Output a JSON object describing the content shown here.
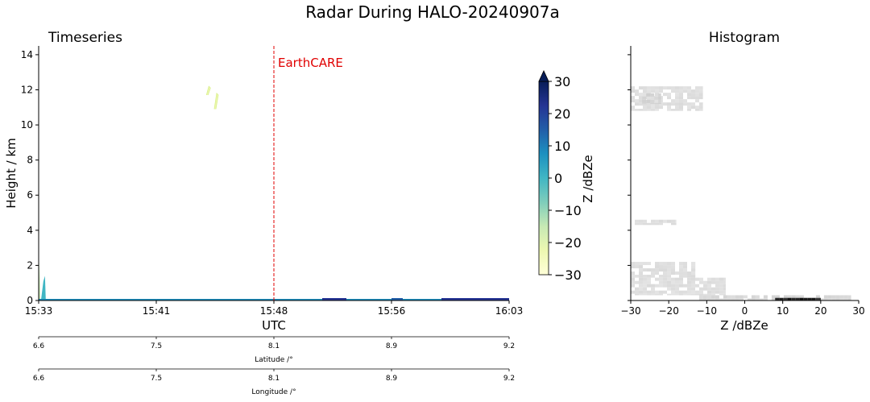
{
  "figure": {
    "title": "Radar During HALO-20240907a"
  },
  "chart_data": [
    {
      "type": "heatmap",
      "panel": "Timeseries",
      "title": "Timeseries",
      "xlabel": "UTC",
      "ylabel": "Height / km",
      "x_ticks": [
        "15:33",
        "15:41",
        "15:48",
        "15:56",
        "16:03"
      ],
      "y_ticks": [
        0,
        2,
        4,
        6,
        8,
        10,
        12,
        14
      ],
      "ylim": [
        0,
        14.5
      ],
      "annotation": {
        "label": "EarthCARE",
        "time": "15:48",
        "color": "#e00000"
      },
      "secondary_axes": [
        {
          "label": "Latitude /°",
          "ticks": [
            "6.6",
            "7.5",
            "8.1",
            "8.9",
            "9.2"
          ]
        },
        {
          "label": "Longitude /°",
          "ticks": [
            "6.6",
            "7.5",
            "8.1",
            "8.9",
            "9.2"
          ]
        }
      ],
      "features": [
        {
          "kind": "cirrus",
          "time": "15:43.8",
          "height_km": [
            11.7,
            12.2
          ],
          "z_dbze": -20
        },
        {
          "kind": "cirrus",
          "time": "15:44.3",
          "height_km": [
            10.9,
            11.8
          ],
          "z_dbze": -20
        },
        {
          "kind": "convective",
          "time": "15:33.3",
          "height_km": [
            0,
            1.4
          ],
          "z_dbze": 0
        },
        {
          "kind": "surface",
          "time_range": [
            "15:33",
            "16:03"
          ],
          "height_km": [
            0,
            0.1
          ],
          "z_dbze": 20
        }
      ]
    },
    {
      "type": "colorbar",
      "label": "Z /dBZe",
      "ticks": [
        -30,
        -20,
        -10,
        0,
        10,
        20,
        30
      ],
      "range": [
        -30,
        30
      ],
      "colormap": [
        "#ffffd9",
        "#edf8b1",
        "#c7e9b4",
        "#7fcdbb",
        "#41b6c4",
        "#1d91c0",
        "#225ea8",
        "#253494",
        "#081d58"
      ]
    },
    {
      "type": "heatmap",
      "panel": "Histogram",
      "title": "Histogram",
      "xlabel": "Z /dBZe",
      "x_ticks": [
        -30,
        -20,
        -10,
        0,
        10,
        20,
        30
      ],
      "xlim": [
        -30,
        30
      ],
      "ylim": [
        0,
        14.5
      ],
      "cells": [
        {
          "z": [
            -30,
            -11
          ],
          "h": [
            10.8,
            12.2
          ],
          "shade": 0.1
        },
        {
          "z": [
            -27,
            -22
          ],
          "h": [
            11.2,
            11.8
          ],
          "shade": 0.14
        },
        {
          "z": [
            -30,
            -18
          ],
          "h": [
            4.3,
            4.6
          ],
          "shade": 0.1
        },
        {
          "z": [
            -30,
            -13
          ],
          "h": [
            1.3,
            2.2
          ],
          "shade": 0.1
        },
        {
          "z": [
            -30,
            -5
          ],
          "h": [
            0.3,
            1.3
          ],
          "shade": 0.1
        },
        {
          "z": [
            -12,
            28
          ],
          "h": [
            0,
            0.3
          ],
          "shade": 0.12
        },
        {
          "z": [
            8,
            20
          ],
          "h": [
            0,
            0.15
          ],
          "shade": 0.75
        }
      ]
    }
  ]
}
